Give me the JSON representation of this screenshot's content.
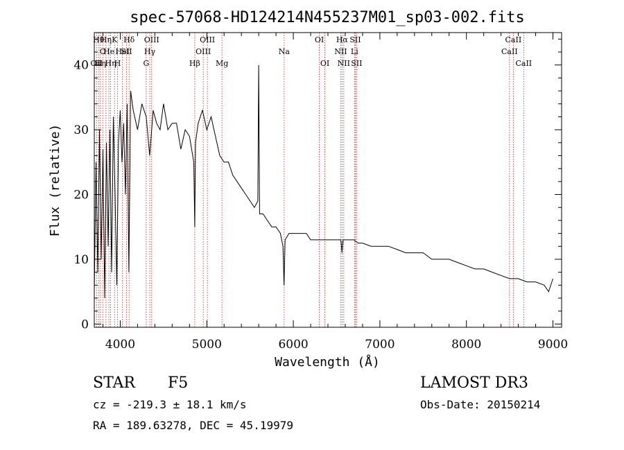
{
  "chart_data": {
    "type": "line",
    "title": "spec-57068-HD124214N455237M01_sp03-002.fits",
    "xlabel": "Wavelength (Å)",
    "ylabel": "Flux (relative)",
    "xlim": [
      3700,
      9100
    ],
    "ylim": [
      -0.5,
      45
    ],
    "xticks": [
      4000,
      5000,
      6000,
      7000,
      8000,
      9000
    ],
    "yticks": [
      0,
      10,
      20,
      30,
      40
    ],
    "grid": false,
    "series": [
      {
        "name": "spectrum",
        "x": [
          3700,
          3720,
          3740,
          3760,
          3780,
          3800,
          3820,
          3840,
          3860,
          3880,
          3900,
          3920,
          3940,
          3960,
          3980,
          4000,
          4020,
          4040,
          4060,
          4080,
          4100,
          4120,
          4150,
          4200,
          4250,
          4300,
          4340,
          4380,
          4420,
          4460,
          4500,
          4550,
          4600,
          4650,
          4700,
          4750,
          4800,
          4850,
          4861,
          4870,
          4900,
          4950,
          5000,
          5050,
          5100,
          5150,
          5200,
          5250,
          5300,
          5350,
          5400,
          5450,
          5500,
          5550,
          5590,
          5600,
          5610,
          5650,
          5700,
          5750,
          5800,
          5850,
          5880,
          5893,
          5905,
          5950,
          6000,
          6050,
          6100,
          6150,
          6200,
          6250,
          6300,
          6350,
          6400,
          6450,
          6500,
          6550,
          6563,
          6575,
          6600,
          6650,
          6700,
          6750,
          6800,
          6900,
          7000,
          7100,
          7200,
          7300,
          7400,
          7500,
          7600,
          7700,
          7800,
          7900,
          8000,
          8100,
          8200,
          8300,
          8400,
          8500,
          8600,
          8700,
          8800,
          8900,
          8950,
          9000
        ],
        "values": [
          5,
          25,
          8,
          30,
          10,
          27,
          4,
          28,
          12,
          30,
          8,
          32,
          20,
          6,
          28,
          33,
          25,
          31,
          20,
          34,
          8,
          36,
          33,
          30,
          34,
          32,
          26,
          33,
          31,
          30,
          34,
          30,
          31,
          31,
          27,
          30,
          29,
          25,
          15,
          28,
          31,
          33,
          30,
          32,
          29,
          26,
          25,
          25,
          23,
          22,
          21,
          20,
          19,
          18,
          19,
          40,
          17,
          17,
          16,
          15,
          15,
          14,
          12,
          6,
          13,
          14,
          14,
          14,
          14,
          14,
          13,
          13,
          13,
          13,
          13,
          13,
          13,
          13,
          11,
          13,
          13,
          13,
          13,
          12.5,
          12.5,
          12,
          12,
          12,
          11.5,
          11,
          11,
          11,
          10,
          10,
          10,
          9.5,
          9,
          8.5,
          8.5,
          8,
          7.5,
          7,
          7,
          6.5,
          6.5,
          6,
          5,
          7
        ]
      }
    ],
    "lines": [
      {
        "wl": 3727,
        "label": "OII",
        "row": 2
      },
      {
        "wl": 3750,
        "label": "Hθ",
        "row": 0
      },
      {
        "wl": 3771,
        "label": "Hη",
        "row": 2
      },
      {
        "wl": 3798,
        "label": "O",
        "row": 1
      },
      {
        "wl": 3835,
        "label": "Hη",
        "row": 0
      },
      {
        "wl": 3869,
        "label": "He",
        "row": 1
      },
      {
        "wl": 3889,
        "label": "Hη",
        "row": 2
      },
      {
        "wl": 3934,
        "label": "K",
        "row": 0
      },
      {
        "wl": 3969,
        "label": "H",
        "row": 2
      },
      {
        "wl": 4026,
        "label": "HeI",
        "row": 1
      },
      {
        "wl": 4072,
        "label": "SII",
        "row": 1
      },
      {
        "wl": 4102,
        "label": "Hδ",
        "row": 0
      },
      {
        "wl": 4300,
        "label": "G",
        "row": 2
      },
      {
        "wl": 4341,
        "label": "Hγ",
        "row": 1
      },
      {
        "wl": 4363,
        "label": "OIII",
        "row": 0
      },
      {
        "wl": 4861,
        "label": "Hβ",
        "row": 2
      },
      {
        "wl": 4959,
        "label": "OIII",
        "row": 1
      },
      {
        "wl": 5007,
        "label": "OIII",
        "row": 0
      },
      {
        "wl": 5175,
        "label": "Mg",
        "row": 2
      },
      {
        "wl": 5894,
        "label": "Na",
        "row": 1
      },
      {
        "wl": 6300,
        "label": "OI",
        "row": 0
      },
      {
        "wl": 6364,
        "label": "OI",
        "row": 2
      },
      {
        "wl": 6548,
        "label": "NII",
        "row": 1
      },
      {
        "wl": 6563,
        "label": "Hα",
        "row": 0
      },
      {
        "wl": 6583,
        "label": "NII",
        "row": 2
      },
      {
        "wl": 6707,
        "label": "Li",
        "row": 1
      },
      {
        "wl": 6716,
        "label": "SII",
        "row": 0
      },
      {
        "wl": 6731,
        "label": "SII",
        "row": 2
      },
      {
        "wl": 8498,
        "label": "CaII",
        "row": 1
      },
      {
        "wl": 8542,
        "label": "CaII",
        "row": 0
      },
      {
        "wl": 8662,
        "label": "CaII",
        "row": 2
      }
    ],
    "line_color": "#cc2222"
  },
  "info": {
    "obj_class": "STAR",
    "subclass": "F5",
    "survey": "LAMOST DR3",
    "cz": "cz = -219.3 ± 18.1 km/s",
    "obs_date": "Obs-Date: 20150214",
    "radec": "RA = 189.63278, DEC =  45.19979"
  }
}
